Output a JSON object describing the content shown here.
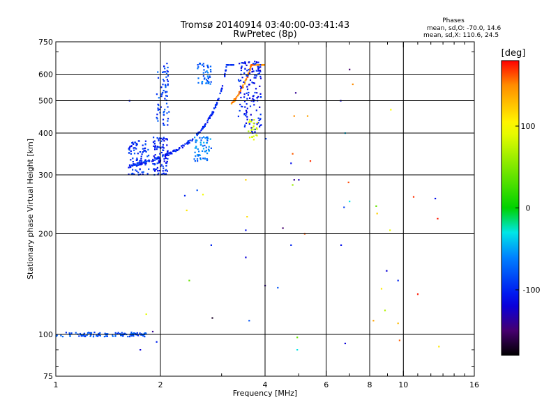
{
  "chart_data": {
    "type": "scatter",
    "title": "Tromsø 20140914 03:40:00-03:41:43",
    "subtitle": "RwPretec (8p)",
    "xlabel": "Frequency [MHz]",
    "ylabel": "Stationary phase Virtual Height [km]",
    "x_scale": "log",
    "y_scale": "log",
    "xlim": [
      1,
      16
    ],
    "ylim": [
      75,
      750
    ],
    "x_ticks": [
      1,
      2,
      4,
      6,
      8,
      10,
      16
    ],
    "y_ticks": [
      75,
      100,
      200,
      300,
      400,
      500,
      600,
      750
    ],
    "grid": true,
    "phase_info": {
      "title": "Phases",
      "line1": "mean, sd,O: -70.0, 14.6",
      "line2": "mean, sd,X: 110.6, 24.5"
    },
    "colorbar": {
      "label": "[deg]",
      "range": [
        -180,
        180
      ],
      "ticks": [
        -100,
        0,
        100
      ]
    },
    "traces": [
      {
        "shape": "flat",
        "fStart": 1.0,
        "fEnd": 1.82,
        "h": 100,
        "phase": -82,
        "count": 120
      },
      {
        "shape": "cusp",
        "fStart": 1.62,
        "fEnd": 3.25,
        "fc": 3.3,
        "hMin": 292,
        "hMax": 640,
        "phase": -100,
        "count": 190
      },
      {
        "shape": "cusp",
        "fStart": 3.2,
        "fEnd": 4.0,
        "fc": 4.05,
        "hMin": 352,
        "hMax": 640,
        "phase": 150,
        "count": 100
      }
    ],
    "clusters": [
      {
        "f": [
          1.62,
          1.85
        ],
        "h": [
          300,
          380
        ],
        "phase": -95,
        "count": 90
      },
      {
        "f": [
          1.9,
          2.1
        ],
        "h": [
          300,
          390
        ],
        "phase": -100,
        "count": 100
      },
      {
        "f": [
          1.95,
          2.12
        ],
        "h": [
          420,
          650
        ],
        "phase": -88,
        "count": 70
      },
      {
        "f": [
          2.5,
          2.8
        ],
        "h": [
          330,
          390
        ],
        "phase": -65,
        "count": 60
      },
      {
        "f": [
          2.55,
          2.8
        ],
        "h": [
          560,
          650
        ],
        "phase": -75,
        "count": 45
      },
      {
        "f": [
          3.35,
          3.9
        ],
        "h": [
          400,
          660
        ],
        "phase": -105,
        "count": 140
      },
      {
        "f": [
          3.55,
          3.8
        ],
        "h": [
          380,
          440
        ],
        "phase": 80,
        "count": 25
      }
    ],
    "points": [
      [
        1.63,
        500,
        -110
      ],
      [
        1.75,
        90,
        -120
      ],
      [
        1.82,
        115,
        90
      ],
      [
        1.9,
        102,
        -140
      ],
      [
        1.95,
        95,
        -100
      ],
      [
        2.35,
        260,
        -100
      ],
      [
        2.38,
        235,
        110
      ],
      [
        2.55,
        270,
        -80
      ],
      [
        2.65,
        262,
        95
      ],
      [
        2.42,
        145,
        40
      ],
      [
        2.8,
        185,
        -100
      ],
      [
        2.82,
        112,
        -170
      ],
      [
        3.52,
        290,
        120
      ],
      [
        3.55,
        225,
        115
      ],
      [
        3.52,
        205,
        -110
      ],
      [
        3.6,
        110,
        -80
      ],
      [
        3.52,
        170,
        -120
      ],
      [
        4.0,
        140,
        -140
      ],
      [
        4.02,
        385,
        -90
      ],
      [
        4.35,
        138,
        -80
      ],
      [
        4.5,
        208,
        -150
      ],
      [
        4.75,
        185,
        -100
      ],
      [
        4.75,
        325,
        -110
      ],
      [
        4.8,
        347,
        160
      ],
      [
        4.85,
        290,
        -140
      ],
      [
        4.8,
        280,
        60
      ],
      [
        4.95,
        98,
        40
      ],
      [
        4.95,
        90,
        -30
      ],
      [
        4.9,
        528,
        -140
      ],
      [
        4.85,
        450,
        150
      ],
      [
        5.0,
        290,
        -130
      ],
      [
        5.2,
        200,
        160
      ],
      [
        5.3,
        450,
        140
      ],
      [
        5.4,
        330,
        170
      ],
      [
        6.6,
        500,
        -120
      ],
      [
        6.62,
        185,
        -110
      ],
      [
        6.75,
        240,
        -90
      ],
      [
        6.8,
        400,
        -40
      ],
      [
        6.8,
        94,
        -120
      ],
      [
        6.95,
        285,
        165
      ],
      [
        7.0,
        250,
        -30
      ],
      [
        7.0,
        620,
        -150
      ],
      [
        7.15,
        560,
        150
      ],
      [
        8.2,
        110,
        140
      ],
      [
        8.35,
        242,
        40
      ],
      [
        8.4,
        230,
        120
      ],
      [
        8.65,
        137,
        110
      ],
      [
        8.85,
        118,
        70
      ],
      [
        8.95,
        155,
        -120
      ],
      [
        9.15,
        205,
        90
      ],
      [
        9.2,
        470,
        100
      ],
      [
        9.65,
        145,
        -100
      ],
      [
        9.65,
        108,
        130
      ],
      [
        9.75,
        96,
        160
      ],
      [
        10.7,
        258,
        170
      ],
      [
        11.0,
        132,
        175
      ],
      [
        12.35,
        255,
        -110
      ],
      [
        12.55,
        222,
        175
      ],
      [
        12.65,
        92,
        110
      ]
    ]
  }
}
